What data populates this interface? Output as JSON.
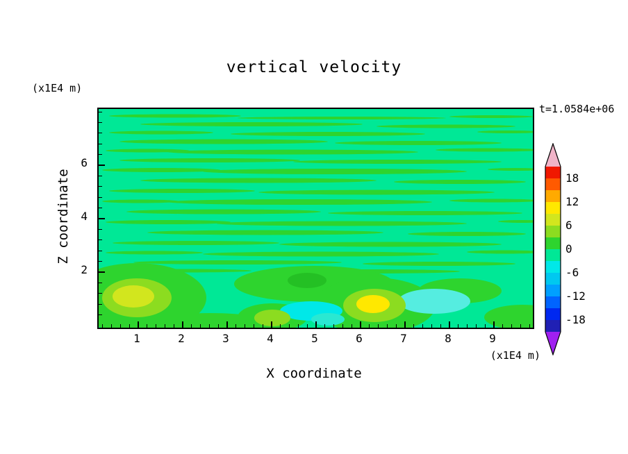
{
  "title": "vertical velocity",
  "time_label": "t=1.0584e+06",
  "axes": {
    "x": {
      "label": "X coordinate",
      "unit": "(x1E4 m)",
      "ticks": [
        1,
        2,
        3,
        4,
        5,
        6,
        7,
        8,
        9
      ]
    },
    "y": {
      "label": "Z coordinate",
      "unit": "(x1E4 m)",
      "ticks": [
        2,
        4,
        6
      ]
    }
  },
  "colorbar": {
    "labels": [
      18,
      12,
      6,
      0,
      -6,
      -12,
      -18
    ],
    "band_colors_bottom_to_top": [
      "#2020B4",
      "#0028F0",
      "#0064FF",
      "#00A0FF",
      "#00C8F0",
      "#00E8E8",
      "#00E896",
      "#2ED42E",
      "#8CDC20",
      "#D2E61E",
      "#FFE800",
      "#FFAA00",
      "#FF5A00",
      "#F01800"
    ],
    "arrow_top_color": "#F0B4C8",
    "arrow_bottom_color": "#A020F0"
  },
  "chart_data": {
    "type": "heatmap",
    "subtype": "filled-contour",
    "title": "vertical velocity",
    "xlabel": "X coordinate",
    "ylabel": "Z coordinate",
    "x_unit_scale": "(x1E4 m)",
    "y_unit_scale": "(x1E4 m)",
    "time_annotation": "t=1.0584e+06",
    "x_ticks": [
      1,
      2,
      3,
      4,
      5,
      6,
      7,
      8,
      9
    ],
    "y_ticks": [
      2,
      4,
      6
    ],
    "x_range_approx": [
      0.1,
      9.9
    ],
    "y_range_approx": [
      0.0,
      8.1
    ],
    "contour_interval": 3,
    "contour_levels": [
      -21,
      -18,
      -15,
      -12,
      -9,
      -6,
      -3,
      0,
      3,
      6,
      9,
      12,
      15,
      18,
      21
    ],
    "colorbar_labeled_levels": [
      18,
      12,
      6,
      0,
      -6,
      -12,
      -18
    ],
    "background_band": {
      "range": [
        -3,
        0
      ],
      "color": "#00E896"
    },
    "streak_band": {
      "range": [
        0,
        3
      ],
      "color": "#2ED42E"
    },
    "field_summary": "Vertical velocity field is near zero almost everywhere: thin alternating horizontal streaks of the 0-to-3 band over a -3-to-0 background fill the region z = 2 to 8. Stronger convective cells sit below z = 2.",
    "features": [
      {
        "name": "updraft-maximum",
        "x": 0.95,
        "z": 1.0,
        "peak_band": [
          6,
          9
        ],
        "peak_color": "#D2E61E"
      },
      {
        "name": "updraft-maximum",
        "x": 6.3,
        "z": 0.85,
        "peak_band": [
          9,
          12
        ],
        "peak_color": "#FFE800"
      },
      {
        "name": "weak-updraft",
        "x": 3.95,
        "z": 0.35,
        "peak_band": [
          3,
          6
        ],
        "peak_color": "#8CDC20"
      },
      {
        "name": "downdraft",
        "x": 4.9,
        "z": 0.6,
        "peak_band": [
          -6,
          -3
        ],
        "peak_color": "#00E8E8"
      },
      {
        "name": "downdraft",
        "x": 7.65,
        "z": 0.9,
        "peak_band": [
          -6,
          -3
        ],
        "peak_color": "#55EDE0"
      },
      {
        "name": "streaky-bands",
        "x_range": [
          0,
          9.9
        ],
        "z_range": [
          2,
          8
        ],
        "bands": [
          -3,
          3
        ]
      }
    ]
  }
}
